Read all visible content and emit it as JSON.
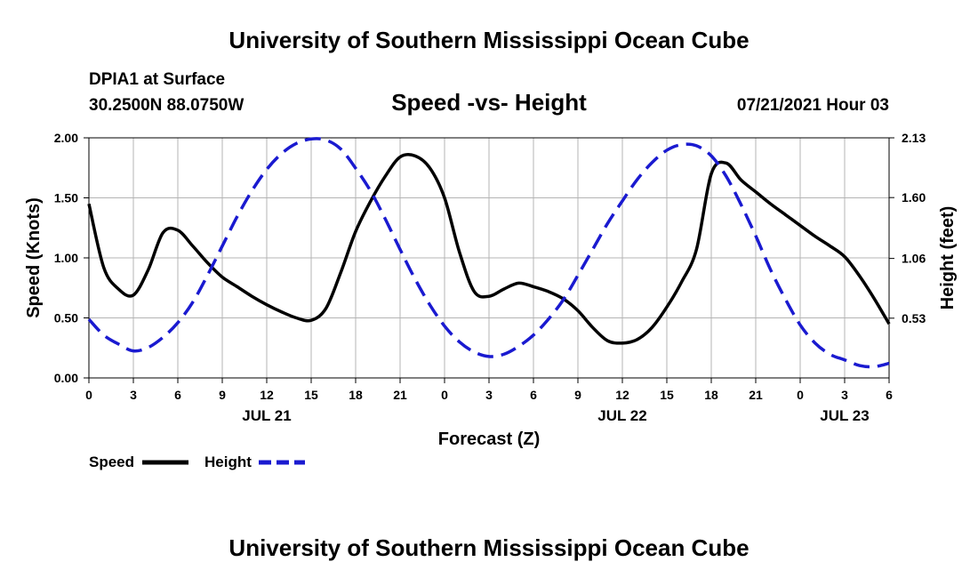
{
  "page": {
    "header_title": "University of Southern Mississippi Ocean Cube",
    "footer_title": "University of Southern Mississippi Ocean Cube",
    "station": "DPIA1 at Surface",
    "coordinates": "30.2500N  88.0750W",
    "forecast_time": "07/21/2021 Hour 03"
  },
  "chart_data": {
    "type": "line",
    "title": "Speed -vs- Height",
    "xlabel": "Forecast (Z)",
    "ylabel": "Speed (Knots)",
    "y2label": "Height (feet)",
    "xlim": [
      0,
      54
    ],
    "ylim": [
      0,
      2.0
    ],
    "y2lim": [
      0,
      2.13
    ],
    "x_tick_values": [
      0,
      3,
      6,
      9,
      12,
      15,
      18,
      21,
      24,
      27,
      30,
      33,
      36,
      39,
      42,
      45,
      48,
      51,
      54
    ],
    "x_tick_labels": [
      "0",
      "3",
      "6",
      "9",
      "12",
      "15",
      "18",
      "21",
      "0",
      "3",
      "6",
      "9",
      "12",
      "15",
      "18",
      "21",
      "0",
      "3",
      "6"
    ],
    "y_ticks": [
      0.0,
      0.5,
      1.0,
      1.5,
      2.0
    ],
    "y_tick_labels": [
      "0.00",
      "0.50",
      "1.00",
      "1.50",
      "2.00"
    ],
    "y2_ticks": [
      0.53,
      1.06,
      1.6,
      2.13
    ],
    "y2_tick_labels": [
      "0.53",
      "1.06",
      "1.60",
      "2.13"
    ],
    "date_labels": [
      {
        "x": 12,
        "label": "JUL 21"
      },
      {
        "x": 36,
        "label": "JUL 22"
      },
      {
        "x": 51,
        "label": "JUL 23"
      }
    ],
    "grid": true,
    "legend_position": "bottom-left",
    "colors": {
      "speed": "#000000",
      "height": "#1a1ad0",
      "grid": "#b4b4b4"
    },
    "series": [
      {
        "name": "Speed",
        "axis": "left",
        "style": "solid",
        "x": [
          0,
          1,
          2,
          3,
          4,
          5,
          6,
          7,
          8,
          9,
          10,
          11,
          12,
          13,
          14,
          15,
          16,
          17,
          18,
          19,
          20,
          21,
          22,
          23,
          24,
          25,
          26,
          27,
          28,
          29,
          30,
          31,
          32,
          33,
          34,
          35,
          36,
          37,
          38,
          39,
          40,
          41,
          42,
          43,
          44,
          45,
          46,
          47,
          48,
          49,
          50,
          51,
          52,
          53,
          54
        ],
        "values": [
          1.45,
          0.92,
          0.74,
          0.69,
          0.9,
          1.21,
          1.23,
          1.1,
          0.96,
          0.84,
          0.76,
          0.68,
          0.61,
          0.55,
          0.5,
          0.48,
          0.58,
          0.88,
          1.22,
          1.47,
          1.68,
          1.84,
          1.85,
          1.75,
          1.5,
          1.05,
          0.72,
          0.68,
          0.74,
          0.79,
          0.76,
          0.72,
          0.66,
          0.56,
          0.42,
          0.31,
          0.29,
          0.32,
          0.42,
          0.59,
          0.8,
          1.07,
          1.7,
          1.79,
          1.65,
          1.55,
          1.45,
          1.36,
          1.27,
          1.18,
          1.1,
          1.01,
          0.85,
          0.66,
          0.45
        ]
      },
      {
        "name": "Height",
        "axis": "right",
        "style": "dashed",
        "x": [
          0,
          1,
          2,
          3,
          4,
          5,
          6,
          7,
          8,
          9,
          10,
          11,
          12,
          13,
          14,
          15,
          16,
          17,
          18,
          19,
          20,
          21,
          22,
          23,
          24,
          25,
          26,
          27,
          28,
          29,
          30,
          31,
          32,
          33,
          34,
          35,
          36,
          37,
          38,
          39,
          40,
          41,
          42,
          43,
          44,
          45,
          46,
          47,
          48,
          49,
          50,
          51,
          52,
          53,
          54
        ],
        "values": [
          0.52,
          0.38,
          0.3,
          0.24,
          0.27,
          0.36,
          0.49,
          0.67,
          0.91,
          1.17,
          1.43,
          1.66,
          1.85,
          1.99,
          2.08,
          2.12,
          2.11,
          2.03,
          1.86,
          1.66,
          1.41,
          1.14,
          0.88,
          0.65,
          0.46,
          0.32,
          0.23,
          0.19,
          0.21,
          0.28,
          0.38,
          0.52,
          0.69,
          0.91,
          1.14,
          1.37,
          1.57,
          1.76,
          1.91,
          2.02,
          2.07,
          2.06,
          1.97,
          1.79,
          1.54,
          1.26,
          0.96,
          0.7,
          0.47,
          0.31,
          0.21,
          0.16,
          0.11,
          0.1,
          0.13
        ]
      }
    ]
  }
}
